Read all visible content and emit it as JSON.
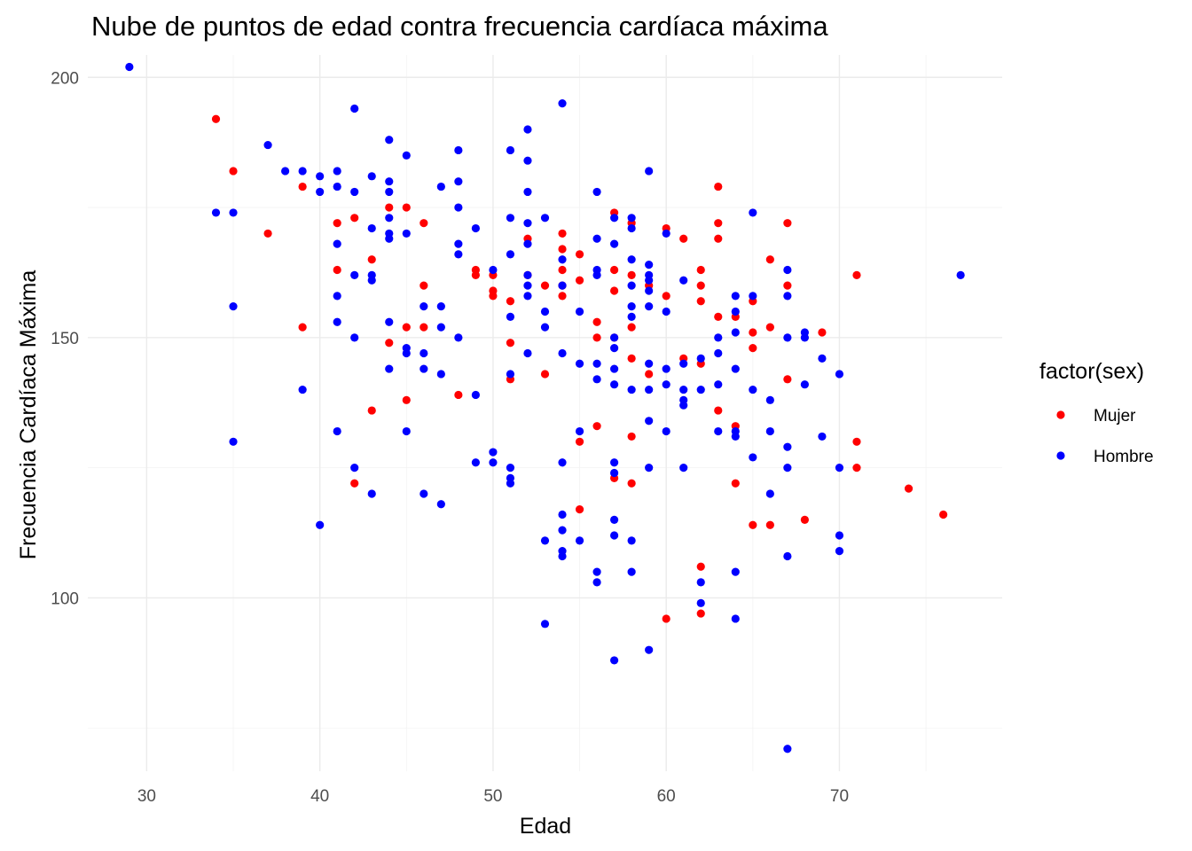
{
  "chart_data": {
    "type": "scatter",
    "title": "Nube de puntos de edad contra frecuencia cardíaca máxima",
    "xlabel": "Edad",
    "ylabel": "Frecuencia Cardíaca Máxima",
    "xlim": [
      26.6,
      79.4
    ],
    "ylim": [
      66.7,
      204.3
    ],
    "x_ticks": [
      30,
      40,
      50,
      60,
      70
    ],
    "y_ticks": [
      100,
      150,
      200
    ],
    "grid": true,
    "legend": {
      "title": "factor(sex)",
      "position": "right"
    },
    "series": [
      {
        "name": "Mujer",
        "color": "#ff0000",
        "points": [
          [
            34,
            192
          ],
          [
            35,
            182
          ],
          [
            37,
            170
          ],
          [
            39,
            179
          ],
          [
            39,
            152
          ],
          [
            41,
            172
          ],
          [
            41,
            163
          ],
          [
            42,
            173
          ],
          [
            42,
            122
          ],
          [
            43,
            165
          ],
          [
            43,
            136
          ],
          [
            44,
            175
          ],
          [
            44,
            149
          ],
          [
            45,
            175
          ],
          [
            45,
            152
          ],
          [
            45,
            138
          ],
          [
            46,
            172
          ],
          [
            46,
            160
          ],
          [
            46,
            152
          ],
          [
            48,
            139
          ],
          [
            49,
            163
          ],
          [
            49,
            162
          ],
          [
            50,
            162
          ],
          [
            50,
            159
          ],
          [
            50,
            158
          ],
          [
            51,
            157
          ],
          [
            51,
            149
          ],
          [
            51,
            142
          ],
          [
            52,
            169
          ],
          [
            52,
            162
          ],
          [
            53,
            160
          ],
          [
            53,
            143
          ],
          [
            54,
            170
          ],
          [
            54,
            167
          ],
          [
            54,
            163
          ],
          [
            54,
            160
          ],
          [
            54,
            158
          ],
          [
            55,
            166
          ],
          [
            55,
            161
          ],
          [
            55,
            130
          ],
          [
            55,
            117
          ],
          [
            56,
            153
          ],
          [
            56,
            150
          ],
          [
            56,
            133
          ],
          [
            57,
            174
          ],
          [
            57,
            163
          ],
          [
            57,
            159
          ],
          [
            57,
            150
          ],
          [
            57,
            123
          ],
          [
            58,
            172
          ],
          [
            58,
            162
          ],
          [
            58,
            152
          ],
          [
            58,
            146
          ],
          [
            58,
            131
          ],
          [
            58,
            122
          ],
          [
            59,
            160
          ],
          [
            59,
            143
          ],
          [
            60,
            171
          ],
          [
            60,
            158
          ],
          [
            60,
            96
          ],
          [
            61,
            169
          ],
          [
            61,
            146
          ],
          [
            62,
            163
          ],
          [
            62,
            160
          ],
          [
            62,
            157
          ],
          [
            62,
            145
          ],
          [
            62,
            106
          ],
          [
            62,
            97
          ],
          [
            63,
            179
          ],
          [
            63,
            172
          ],
          [
            63,
            169
          ],
          [
            63,
            154
          ],
          [
            63,
            136
          ],
          [
            64,
            154
          ],
          [
            64,
            133
          ],
          [
            64,
            122
          ],
          [
            65,
            157
          ],
          [
            65,
            151
          ],
          [
            65,
            148
          ],
          [
            65,
            114
          ],
          [
            66,
            165
          ],
          [
            66,
            152
          ],
          [
            66,
            114
          ],
          [
            67,
            172
          ],
          [
            67,
            160
          ],
          [
            67,
            142
          ],
          [
            68,
            115
          ],
          [
            69,
            151
          ],
          [
            71,
            162
          ],
          [
            71,
            130
          ],
          [
            71,
            125
          ],
          [
            74,
            121
          ],
          [
            76,
            116
          ]
        ]
      },
      {
        "name": "Hombre",
        "color": "#0000ff",
        "points": [
          [
            29,
            202
          ],
          [
            34,
            174
          ],
          [
            35,
            174
          ],
          [
            35,
            156
          ],
          [
            35,
            130
          ],
          [
            37,
            187
          ],
          [
            38,
            182
          ],
          [
            39,
            182
          ],
          [
            39,
            140
          ],
          [
            40,
            181
          ],
          [
            40,
            178
          ],
          [
            40,
            114
          ],
          [
            41,
            182
          ],
          [
            41,
            179
          ],
          [
            41,
            168
          ],
          [
            41,
            158
          ],
          [
            41,
            153
          ],
          [
            41,
            132
          ],
          [
            42,
            194
          ],
          [
            42,
            178
          ],
          [
            42,
            162
          ],
          [
            42,
            150
          ],
          [
            42,
            125
          ],
          [
            43,
            181
          ],
          [
            43,
            171
          ],
          [
            43,
            162
          ],
          [
            43,
            161
          ],
          [
            43,
            120
          ],
          [
            44,
            188
          ],
          [
            44,
            180
          ],
          [
            44,
            178
          ],
          [
            44,
            173
          ],
          [
            44,
            170
          ],
          [
            44,
            169
          ],
          [
            44,
            153
          ],
          [
            44,
            144
          ],
          [
            45,
            185
          ],
          [
            45,
            170
          ],
          [
            45,
            148
          ],
          [
            45,
            147
          ],
          [
            45,
            132
          ],
          [
            46,
            156
          ],
          [
            46,
            147
          ],
          [
            46,
            144
          ],
          [
            46,
            120
          ],
          [
            47,
            179
          ],
          [
            47,
            156
          ],
          [
            47,
            152
          ],
          [
            47,
            143
          ],
          [
            47,
            118
          ],
          [
            48,
            186
          ],
          [
            48,
            180
          ],
          [
            48,
            175
          ],
          [
            48,
            168
          ],
          [
            48,
            166
          ],
          [
            48,
            150
          ],
          [
            49,
            171
          ],
          [
            49,
            139
          ],
          [
            49,
            126
          ],
          [
            50,
            163
          ],
          [
            50,
            128
          ],
          [
            50,
            126
          ],
          [
            51,
            186
          ],
          [
            51,
            173
          ],
          [
            51,
            166
          ],
          [
            51,
            154
          ],
          [
            51,
            143
          ],
          [
            51,
            125
          ],
          [
            51,
            123
          ],
          [
            51,
            122
          ],
          [
            52,
            190
          ],
          [
            52,
            184
          ],
          [
            52,
            178
          ],
          [
            52,
            172
          ],
          [
            52,
            168
          ],
          [
            52,
            162
          ],
          [
            52,
            160
          ],
          [
            52,
            158
          ],
          [
            52,
            147
          ],
          [
            53,
            173
          ],
          [
            53,
            155
          ],
          [
            53,
            152
          ],
          [
            53,
            111
          ],
          [
            53,
            95
          ],
          [
            54,
            195
          ],
          [
            54,
            165
          ],
          [
            54,
            160
          ],
          [
            54,
            147
          ],
          [
            54,
            126
          ],
          [
            54,
            116
          ],
          [
            54,
            113
          ],
          [
            54,
            109
          ],
          [
            54,
            108
          ],
          [
            55,
            155
          ],
          [
            55,
            145
          ],
          [
            55,
            132
          ],
          [
            55,
            111
          ],
          [
            56,
            178
          ],
          [
            56,
            169
          ],
          [
            56,
            163
          ],
          [
            56,
            162
          ],
          [
            56,
            145
          ],
          [
            56,
            142
          ],
          [
            56,
            105
          ],
          [
            56,
            103
          ],
          [
            57,
            173
          ],
          [
            57,
            168
          ],
          [
            57,
            150
          ],
          [
            57,
            148
          ],
          [
            57,
            144
          ],
          [
            57,
            141
          ],
          [
            57,
            126
          ],
          [
            57,
            124
          ],
          [
            57,
            115
          ],
          [
            57,
            112
          ],
          [
            57,
            88
          ],
          [
            58,
            173
          ],
          [
            58,
            171
          ],
          [
            58,
            165
          ],
          [
            58,
            160
          ],
          [
            58,
            156
          ],
          [
            58,
            154
          ],
          [
            58,
            140
          ],
          [
            58,
            111
          ],
          [
            58,
            105
          ],
          [
            59,
            182
          ],
          [
            59,
            164
          ],
          [
            59,
            162
          ],
          [
            59,
            161
          ],
          [
            59,
            159
          ],
          [
            59,
            156
          ],
          [
            59,
            145
          ],
          [
            59,
            140
          ],
          [
            59,
            134
          ],
          [
            59,
            125
          ],
          [
            59,
            90
          ],
          [
            60,
            170
          ],
          [
            60,
            155
          ],
          [
            60,
            144
          ],
          [
            60,
            141
          ],
          [
            60,
            132
          ],
          [
            61,
            161
          ],
          [
            61,
            145
          ],
          [
            61,
            140
          ],
          [
            61,
            138
          ],
          [
            61,
            137
          ],
          [
            61,
            125
          ],
          [
            62,
            146
          ],
          [
            62,
            140
          ],
          [
            62,
            103
          ],
          [
            62,
            99
          ],
          [
            63,
            150
          ],
          [
            63,
            147
          ],
          [
            63,
            141
          ],
          [
            63,
            132
          ],
          [
            64,
            158
          ],
          [
            64,
            155
          ],
          [
            64,
            151
          ],
          [
            64,
            144
          ],
          [
            64,
            132
          ],
          [
            64,
            131
          ],
          [
            64,
            105
          ],
          [
            64,
            96
          ],
          [
            65,
            174
          ],
          [
            65,
            158
          ],
          [
            65,
            140
          ],
          [
            65,
            127
          ],
          [
            66,
            138
          ],
          [
            66,
            132
          ],
          [
            66,
            120
          ],
          [
            67,
            163
          ],
          [
            67,
            158
          ],
          [
            67,
            150
          ],
          [
            67,
            129
          ],
          [
            67,
            125
          ],
          [
            67,
            108
          ],
          [
            67,
            71
          ],
          [
            68,
            151
          ],
          [
            68,
            150
          ],
          [
            68,
            141
          ],
          [
            69,
            146
          ],
          [
            69,
            131
          ],
          [
            70,
            143
          ],
          [
            70,
            125
          ],
          [
            70,
            112
          ],
          [
            70,
            109
          ],
          [
            77,
            162
          ]
        ]
      }
    ]
  }
}
